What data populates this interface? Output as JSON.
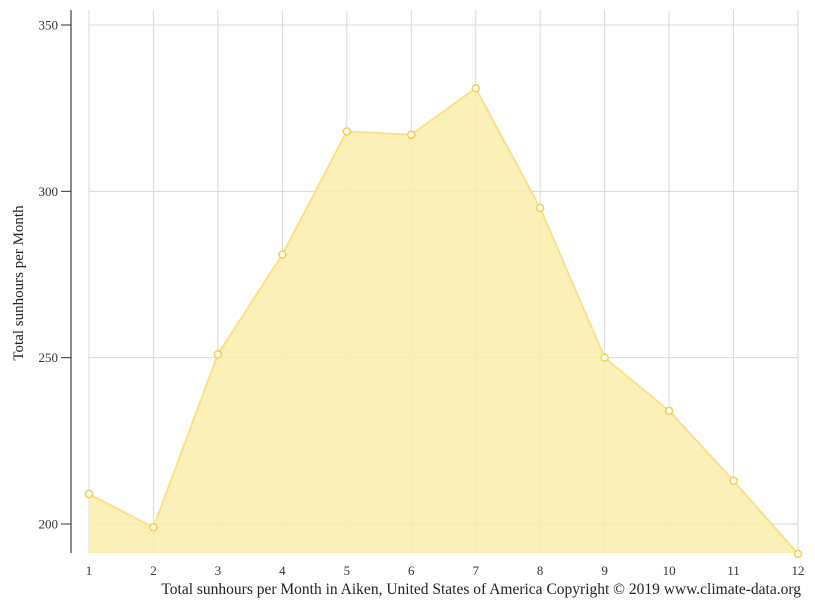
{
  "chart_data": {
    "type": "area",
    "title": "Total sunhours per Month in Aiken, United States of America Copyright © 2019 www.climate-data.org",
    "xlabel": "",
    "ylabel": "Total sunhours per Month",
    "categories": [
      "1",
      "2",
      "3",
      "4",
      "5",
      "6",
      "7",
      "8",
      "9",
      "10",
      "11",
      "12"
    ],
    "series": [
      {
        "name": "Total sunhours per Month",
        "values": [
          209,
          199,
          251,
          281,
          318,
          317,
          331,
          295,
          250,
          234,
          213,
          191
        ]
      }
    ],
    "yticks": [
      200,
      250,
      300,
      350
    ],
    "ylim": [
      191,
      354
    ],
    "grid": true,
    "legend": "none",
    "colors": {
      "fill": "#faedaa",
      "line": "#f9e08a",
      "marker_stroke": "#f5cf4a",
      "marker_fill": "#ffffff",
      "grid": "#d9d9d9",
      "axis": "#666666"
    }
  },
  "caption": "Total sunhours per Month in Aiken, United States of America Copyright © 2019 www.climate-data.org"
}
